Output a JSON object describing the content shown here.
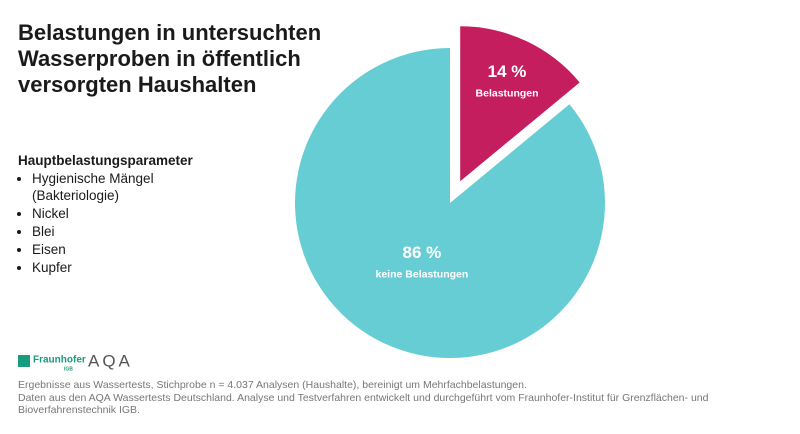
{
  "chart_data": {
    "type": "pie",
    "title": [
      "Belastungen in untersuchten",
      "Wasserproben in öffentlich",
      "versorgten Haushalten"
    ],
    "categories": [
      "Belastungen",
      "keine Belastungen"
    ],
    "values": [
      14,
      86
    ],
    "value_labels": [
      "14 %",
      "86 %"
    ],
    "colors": [
      "#c41e5f",
      "#67cdd4"
    ]
  },
  "parameters": {
    "heading": "Hauptbelastungsparameter",
    "items": [
      [
        "Hygienische Mängel",
        "(Bakteriologie)"
      ],
      [
        "Nickel"
      ],
      [
        "Blei"
      ],
      [
        "Eisen"
      ],
      [
        "Kupfer"
      ]
    ]
  },
  "logos": {
    "fraunhofer": "Fraunhofer",
    "institute": "IGB",
    "aqa": "AQA"
  },
  "footnote": [
    "Ergebnisse aus Wassertests, Stichprobe n = 4.037 Analysen (Haushalte), bereinigt um Mehrfachbelastungen.",
    "Daten aus den AQA Wassertests Deutschland. Analyse und Testverfahren entwickelt und durchgeführt vom Fraunhofer-Institut für Grenzflächen- und",
    "Bioverfahrenstechnik IGB."
  ]
}
